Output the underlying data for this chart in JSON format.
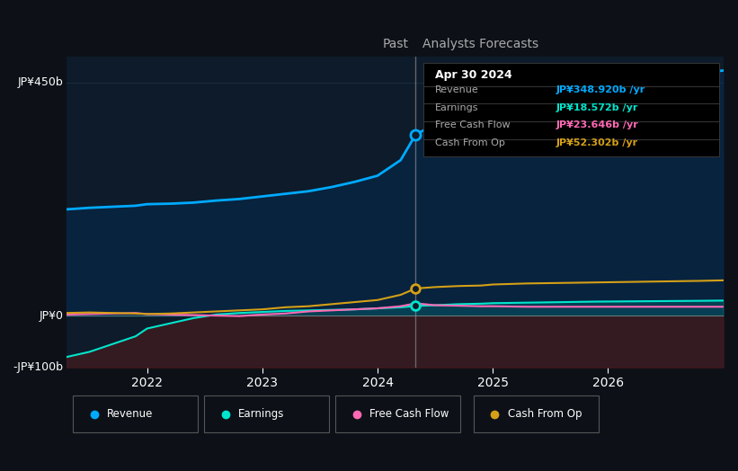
{
  "bg_color": "#0d1117",
  "plot_bg_color": "#0d1b2a",
  "ylabel_top": "JP¥450b",
  "ylabel_zero": "JP¥0",
  "ylabel_bottom": "-JP¥100b",
  "ylim": [
    -100,
    500
  ],
  "xlim": [
    2021.3,
    2027.0
  ],
  "divider_x": 2024.33,
  "past_label": "Past",
  "forecast_label": "Analysts Forecasts",
  "xticks": [
    2022,
    2023,
    2024,
    2025,
    2026
  ],
  "revenue_color": "#00aaff",
  "earnings_color": "#00e5cc",
  "fcf_color": "#ff69b4",
  "cashop_color": "#d4a017",
  "revenue_fill_color": "#003366",
  "earnings_neg_fill": "#5c1a1a",
  "tooltip": {
    "date": "Apr 30 2024",
    "revenue_label": "Revenue",
    "revenue_value": "JP¥348.920b",
    "earnings_label": "Earnings",
    "earnings_value": "JP¥18.572b",
    "fcf_label": "Free Cash Flow",
    "fcf_value": "JP¥23.646b",
    "cashop_label": "Cash From Op",
    "cashop_value": "JP¥52.302b"
  },
  "revenue_x": [
    2021.3,
    2021.5,
    2021.7,
    2021.9,
    2022.0,
    2022.2,
    2022.4,
    2022.6,
    2022.8,
    2023.0,
    2023.2,
    2023.4,
    2023.6,
    2023.8,
    2024.0,
    2024.2,
    2024.33,
    2024.5,
    2024.7,
    2024.9,
    2025.0,
    2025.3,
    2025.6,
    2025.9,
    2026.2,
    2026.5,
    2026.8,
    2027.0
  ],
  "revenue_y": [
    205,
    208,
    210,
    212,
    215,
    216,
    218,
    222,
    225,
    230,
    235,
    240,
    248,
    258,
    270,
    300,
    349,
    370,
    385,
    400,
    410,
    425,
    435,
    445,
    455,
    462,
    468,
    473
  ],
  "earnings_x": [
    2021.3,
    2021.5,
    2021.7,
    2021.9,
    2022.0,
    2022.2,
    2022.4,
    2022.6,
    2022.8,
    2023.0,
    2023.2,
    2023.4,
    2023.6,
    2023.8,
    2024.0,
    2024.2,
    2024.33,
    2024.5,
    2024.7,
    2024.9,
    2025.0,
    2025.3,
    2025.6,
    2025.9,
    2026.2,
    2026.5,
    2026.8,
    2027.0
  ],
  "earnings_y": [
    -80,
    -70,
    -55,
    -40,
    -25,
    -15,
    -5,
    2,
    5,
    7,
    9,
    10,
    11,
    12,
    14,
    16,
    18.6,
    20,
    22,
    23,
    24,
    25,
    26,
    27,
    27.5,
    28,
    28.5,
    29
  ],
  "fcf_x": [
    2021.3,
    2021.5,
    2021.7,
    2021.9,
    2022.0,
    2022.2,
    2022.4,
    2022.6,
    2022.8,
    2023.0,
    2023.2,
    2023.4,
    2023.6,
    2023.8,
    2024.0,
    2024.2,
    2024.33,
    2024.5,
    2024.7,
    2024.9,
    2025.0,
    2025.3,
    2025.6,
    2025.9,
    2026.2,
    2026.5,
    2026.8,
    2027.0
  ],
  "fcf_y": [
    2,
    3,
    4,
    5,
    3,
    2,
    1,
    0,
    -1,
    2,
    4,
    8,
    10,
    12,
    14,
    18,
    23.6,
    20,
    19,
    18,
    18,
    17,
    17,
    17,
    17,
    17,
    17,
    17
  ],
  "cashop_x": [
    2021.3,
    2021.5,
    2021.7,
    2021.9,
    2022.0,
    2022.2,
    2022.4,
    2022.6,
    2022.8,
    2023.0,
    2023.2,
    2023.4,
    2023.6,
    2023.8,
    2024.0,
    2024.2,
    2024.33,
    2024.5,
    2024.7,
    2024.9,
    2025.0,
    2025.3,
    2025.6,
    2025.9,
    2026.2,
    2026.5,
    2026.8,
    2027.0
  ],
  "cashop_y": [
    5,
    6,
    5,
    4,
    3,
    4,
    6,
    8,
    10,
    12,
    16,
    18,
    22,
    26,
    30,
    40,
    52.3,
    55,
    57,
    58,
    60,
    62,
    63,
    64,
    65,
    66,
    67,
    68
  ],
  "legend_items": [
    {
      "label": "Revenue",
      "color": "#00aaff"
    },
    {
      "label": "Earnings",
      "color": "#00e5cc"
    },
    {
      "label": "Free Cash Flow",
      "color": "#ff69b4"
    },
    {
      "label": "Cash From Op",
      "color": "#d4a017"
    }
  ]
}
